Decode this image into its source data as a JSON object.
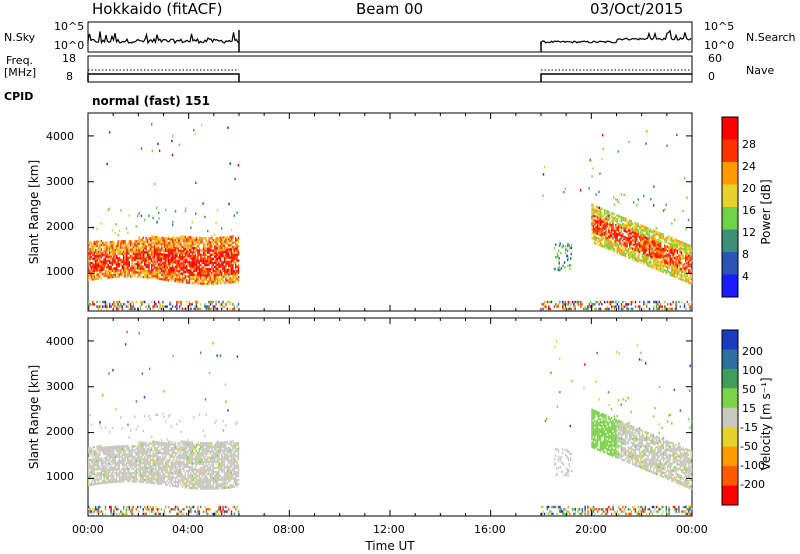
{
  "header": {
    "station": "Hokkaido (fitACF)",
    "beam": "Beam 00",
    "date": "03/Oct/2015"
  },
  "top_panels": {
    "nsky_label": "N.Sky",
    "nsky_ticks": [
      "10^5",
      "10^0"
    ],
    "nsearch_label": "N.Search",
    "nsearch_ticks": [
      "10^5",
      "10^0"
    ],
    "freq_label_1": "Freq.",
    "freq_label_2": "[MHz]",
    "freq_ticks": [
      "18",
      "8"
    ],
    "nave_label": "Nave",
    "nave_ticks": [
      "60",
      "0"
    ],
    "cpid_label": "CPID",
    "cpid_value": "normal (fast) 151"
  },
  "chart_data": [
    {
      "type": "heatmap",
      "name": "power",
      "ylabel": "Slant Range [km]",
      "yticks": [
        "1000",
        "2000",
        "3000",
        "4000"
      ],
      "ylim": [
        180,
        4500
      ],
      "colorbar_label": "Power [dB]",
      "colorbar_ticks": [
        "4",
        "8",
        "12",
        "16",
        "20",
        "24",
        "28"
      ],
      "colorbar_colors": [
        "#1a1aff",
        "#2b55b5",
        "#3d8f7a",
        "#6fd34a",
        "#e6d22a",
        "#ff9b00",
        "#ff3300",
        "#ff0000"
      ]
    },
    {
      "type": "heatmap",
      "name": "velocity",
      "ylabel": "Slant Range [km]",
      "yticks": [
        "1000",
        "2000",
        "3000",
        "4000"
      ],
      "ylim": [
        180,
        4500
      ],
      "colorbar_label": "Velocity [m s⁻¹]",
      "colorbar_ticks": [
        "200",
        "100",
        "50",
        "15",
        "-15",
        "-50",
        "-100",
        "-200"
      ],
      "colorbar_colors": [
        "#1a3dbf",
        "#2e6f9e",
        "#3f9f5a",
        "#7dd34a",
        "#c8c8c0",
        "#e6d22a",
        "#ff9b00",
        "#ff5a00",
        "#ff0000"
      ]
    }
  ],
  "xaxis": {
    "label": "Time UT",
    "ticks": [
      "00:00",
      "04:00",
      "08:00",
      "12:00",
      "16:00",
      "20:00",
      "00:00"
    ]
  }
}
